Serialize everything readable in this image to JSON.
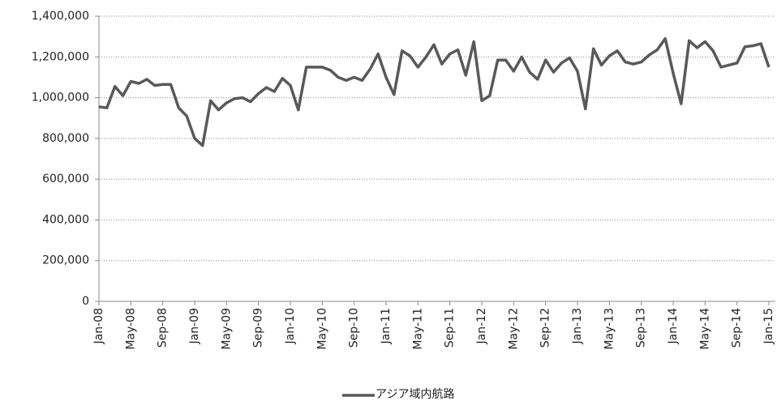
{
  "chart_data": {
    "type": "line",
    "categories": [
      "Jan-08",
      null,
      null,
      null,
      "May-08",
      null,
      null,
      null,
      "Sep-08",
      null,
      null,
      null,
      "Jan-09",
      null,
      null,
      null,
      "May-09",
      null,
      null,
      null,
      "Sep-09",
      null,
      null,
      null,
      "Jan-10",
      null,
      null,
      null,
      "May-10",
      null,
      null,
      null,
      "Sep-10",
      null,
      null,
      null,
      "Jan-11",
      null,
      null,
      null,
      "May-11",
      null,
      null,
      null,
      "Sep-11",
      null,
      null,
      null,
      "Jan-12",
      null,
      null,
      null,
      "May-12",
      null,
      null,
      null,
      "Sep-12",
      null,
      null,
      null,
      "Jan-13",
      null,
      null,
      null,
      "May-13",
      null,
      null,
      null,
      "Sep-13",
      null,
      null,
      null,
      "Jan-14",
      null,
      null,
      null,
      "May-14",
      null,
      null,
      null,
      "Sep-14",
      null,
      null,
      null,
      "Jan-15"
    ],
    "series": [
      {
        "name": "アジア域内航路",
        "color": "#595959",
        "values": [
          955000,
          950000,
          1055000,
          1010000,
          1080000,
          1070000,
          1090000,
          1060000,
          1065000,
          1065000,
          950000,
          910000,
          800000,
          765000,
          985000,
          940000,
          975000,
          995000,
          1000000,
          980000,
          1020000,
          1050000,
          1030000,
          1095000,
          1060000,
          940000,
          1150000,
          1150000,
          1150000,
          1135000,
          1100000,
          1085000,
          1100000,
          1085000,
          1140000,
          1215000,
          1100000,
          1015000,
          1230000,
          1205000,
          1150000,
          1200000,
          1260000,
          1165000,
          1215000,
          1235000,
          1110000,
          1275000,
          985000,
          1010000,
          1185000,
          1185000,
          1130000,
          1200000,
          1125000,
          1090000,
          1185000,
          1125000,
          1170000,
          1195000,
          1130000,
          945000,
          1240000,
          1160000,
          1205000,
          1230000,
          1175000,
          1165000,
          1175000,
          1210000,
          1235000,
          1290000,
          1120000,
          970000,
          1280000,
          1245000,
          1275000,
          1230000,
          1150000,
          1160000,
          1170000,
          1250000,
          1255000,
          1265000,
          1150000
        ]
      }
    ],
    "ylim": [
      0,
      1400000
    ],
    "yticks": [
      0,
      {
        "value": 200000,
        "label": "200,000"
      },
      {
        "value": 400000,
        "label": "400,000"
      },
      {
        "value": 600000,
        "label": "600,000"
      },
      {
        "value": 800000,
        "label": "800,000"
      },
      {
        "value": 1000000,
        "label": "1,000,000"
      },
      {
        "value": 1200000,
        "label": "1,200,000"
      },
      {
        "value": 1400000,
        "label": "1,400,000"
      }
    ],
    "grid": true,
    "legend": "bottom"
  }
}
